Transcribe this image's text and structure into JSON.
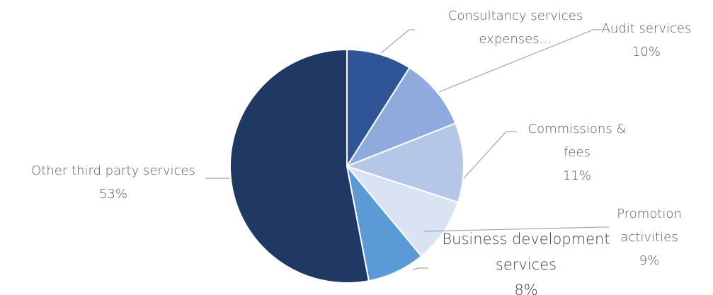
{
  "chart_data": {
    "type": "pie",
    "categories": [
      "Consultancy services expenses…",
      "Audit services",
      "Commissions & fees",
      "Promotion activities",
      "Business development services",
      "Other third party services"
    ],
    "values": [
      9,
      10,
      11,
      9,
      8,
      53
    ],
    "value_labels": [
      null,
      "10%",
      "11%",
      "9%",
      "8%",
      "53%"
    ],
    "colors": [
      "#2f5597",
      "#8faadc",
      "#b4c7e7",
      "#dae3f3",
      "#5b9bd5",
      "#203864"
    ]
  }
}
